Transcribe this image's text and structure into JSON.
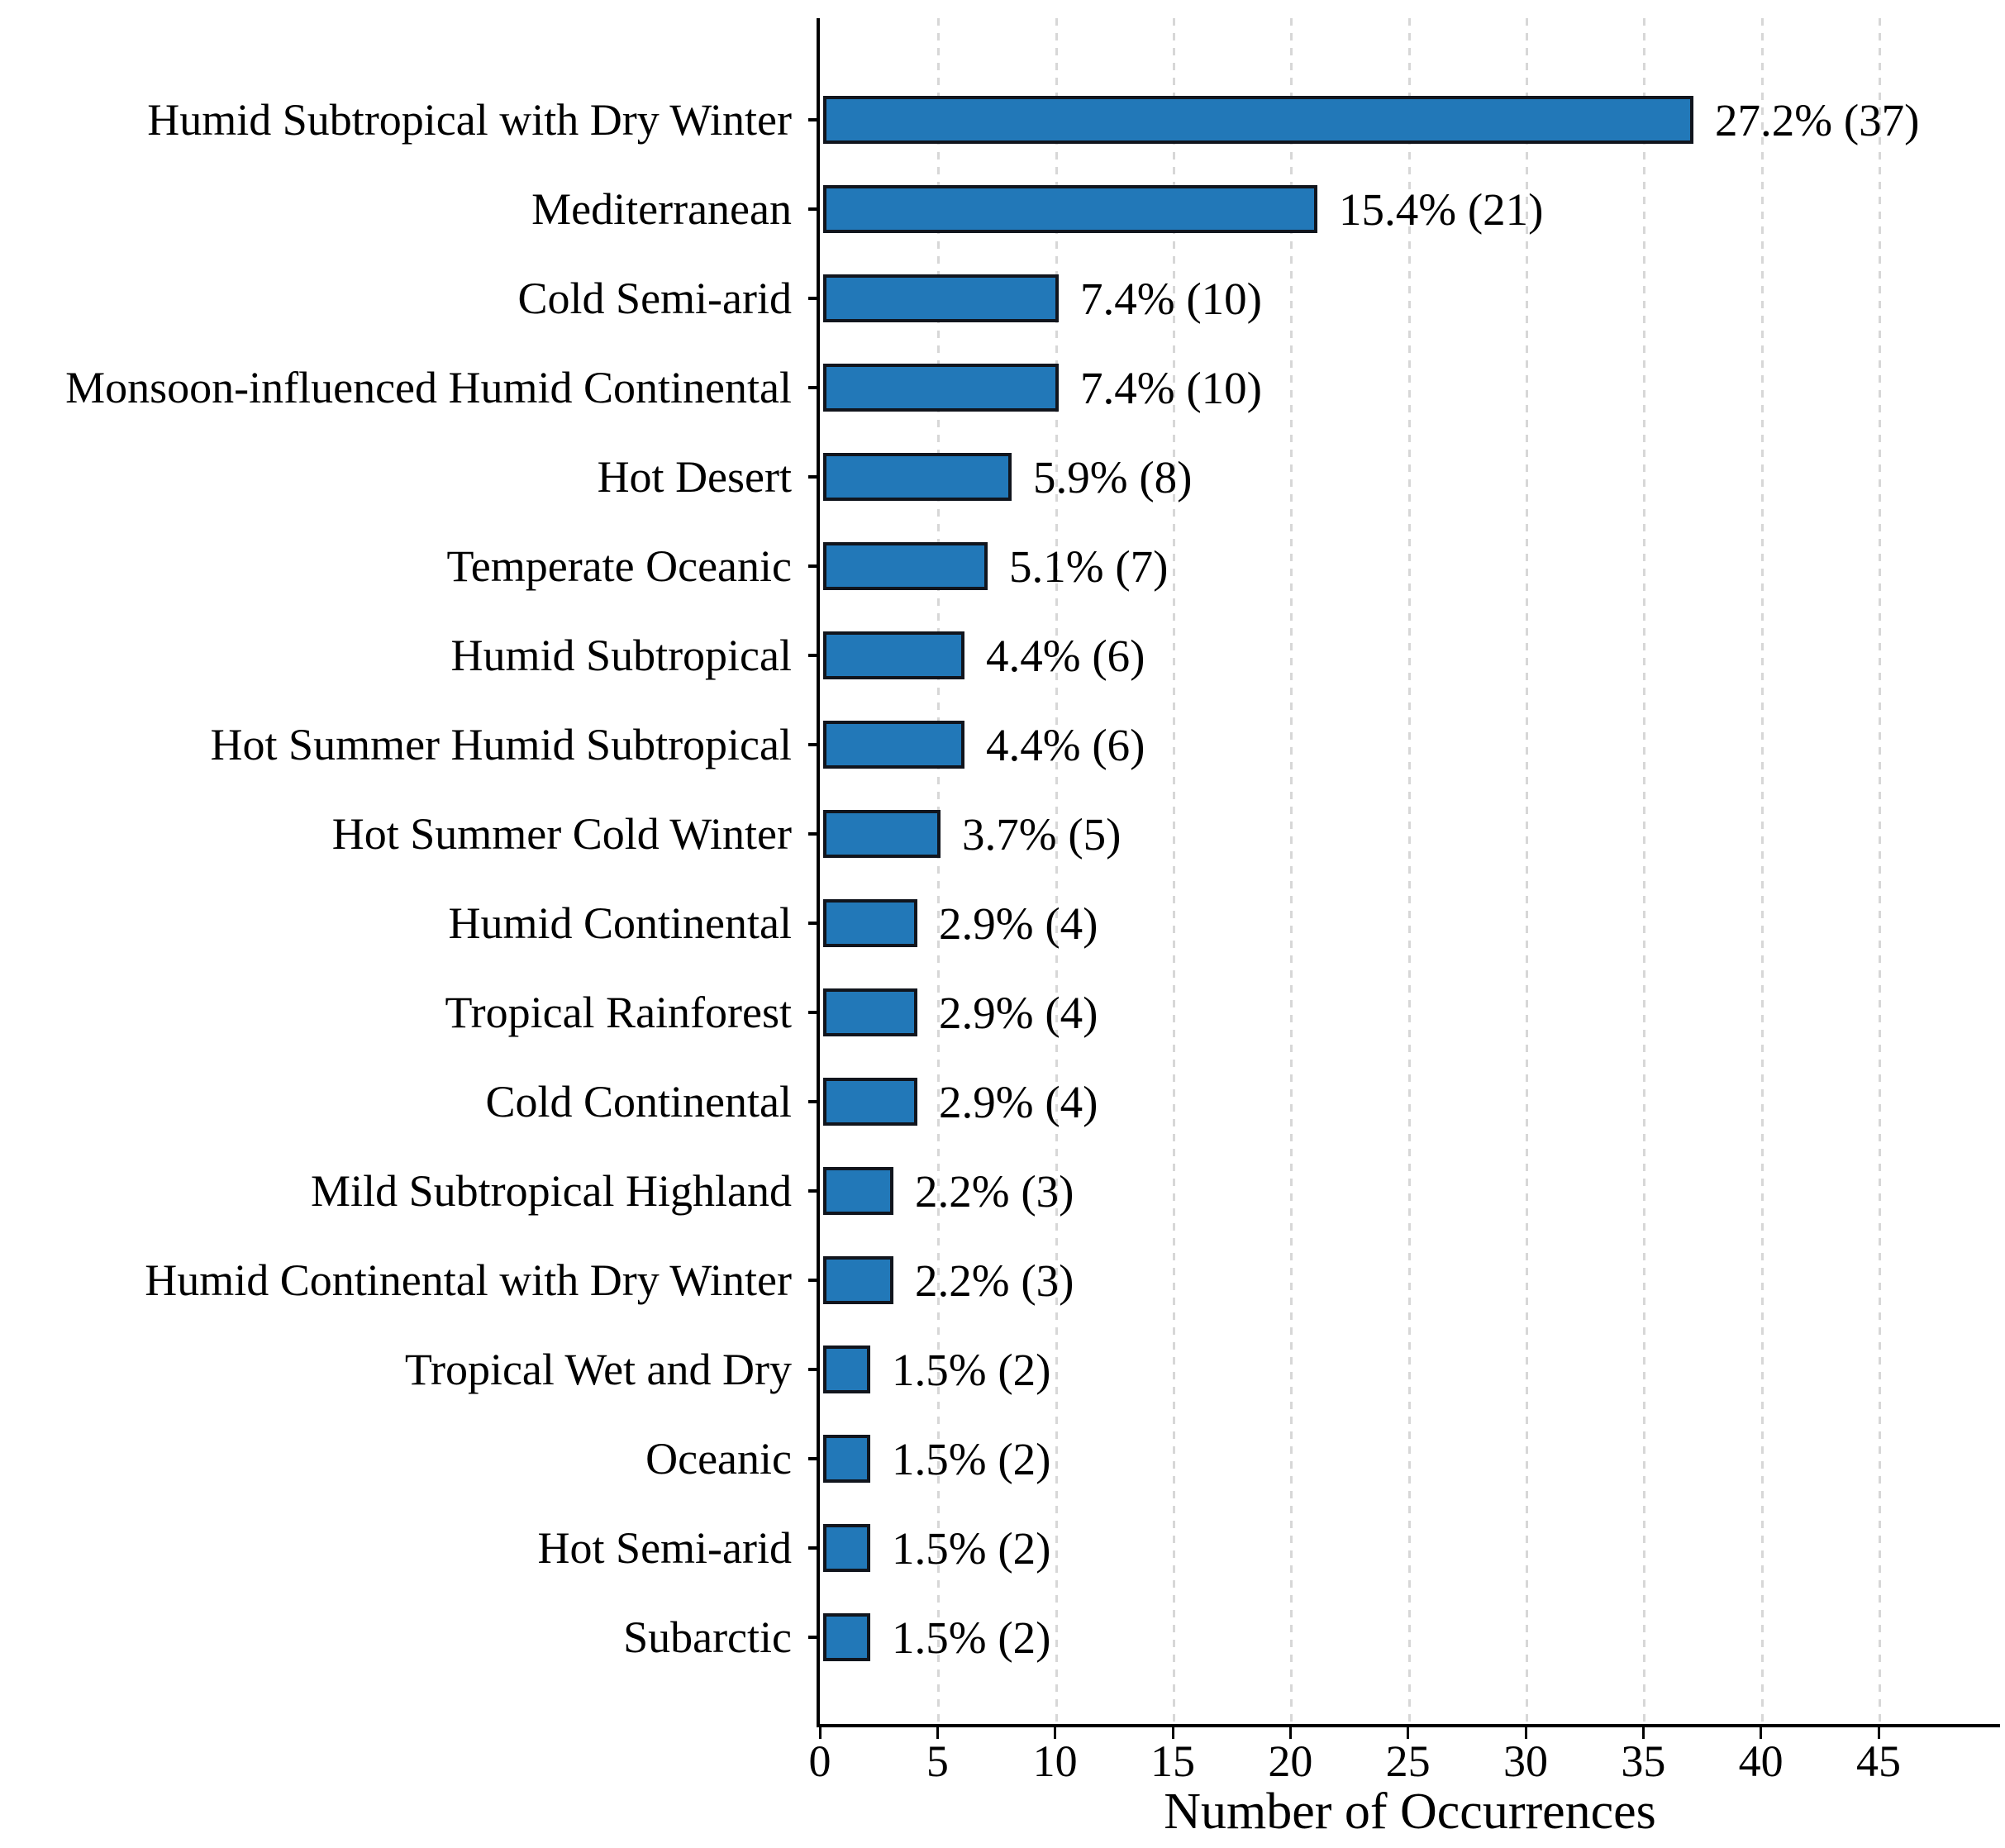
{
  "chart_data": {
    "type": "bar",
    "orientation": "horizontal",
    "title": "",
    "xlabel": "Number of Occurrences",
    "ylabel": "",
    "xlim": [
      0,
      50
    ],
    "x_ticks": [
      0,
      5,
      10,
      15,
      20,
      25,
      30,
      35,
      40,
      45
    ],
    "grid": "vertical-dashed",
    "legend": "none",
    "categories": [
      "Humid Subtropical with Dry Winter",
      "Mediterranean",
      "Cold Semi-arid",
      "Monsoon-influenced Humid Continental",
      "Hot Desert",
      "Temperate Oceanic",
      "Humid Subtropical",
      "Hot Summer Humid Subtropical",
      "Hot Summer Cold Winter",
      "Humid Continental",
      "Tropical Rainforest",
      "Cold Continental",
      "Mild Subtropical Highland",
      "Humid Continental with Dry Winter",
      "Tropical Wet and Dry",
      "Oceanic",
      "Hot Semi-arid",
      "Subarctic"
    ],
    "values": [
      37,
      21,
      10,
      10,
      8,
      7,
      6,
      6,
      5,
      4,
      4,
      4,
      3,
      3,
      2,
      2,
      2,
      2
    ],
    "percents": [
      27.2,
      15.4,
      7.4,
      7.4,
      5.9,
      5.1,
      4.4,
      4.4,
      3.7,
      2.9,
      2.9,
      2.9,
      2.2,
      2.2,
      1.5,
      1.5,
      1.5,
      1.5
    ],
    "annotations": [
      "27.2% (37)",
      "15.4% (21)",
      "7.4% (10)",
      "7.4% (10)",
      "5.9% (8)",
      "5.1% (7)",
      "4.4% (6)",
      "4.4% (6)",
      "3.7% (5)",
      "2.9% (4)",
      "2.9% (4)",
      "2.9% (4)",
      "2.2% (3)",
      "2.2% (3)",
      "1.5% (2)",
      "1.5% (2)",
      "1.5% (2)",
      "1.5% (2)"
    ],
    "colors": {
      "bar_fill": "#2278b8",
      "bar_edge": "#11151d",
      "grid": "#d7d7d7",
      "axis": "#000000",
      "text": "#000000",
      "background": "#ffffff"
    }
  }
}
